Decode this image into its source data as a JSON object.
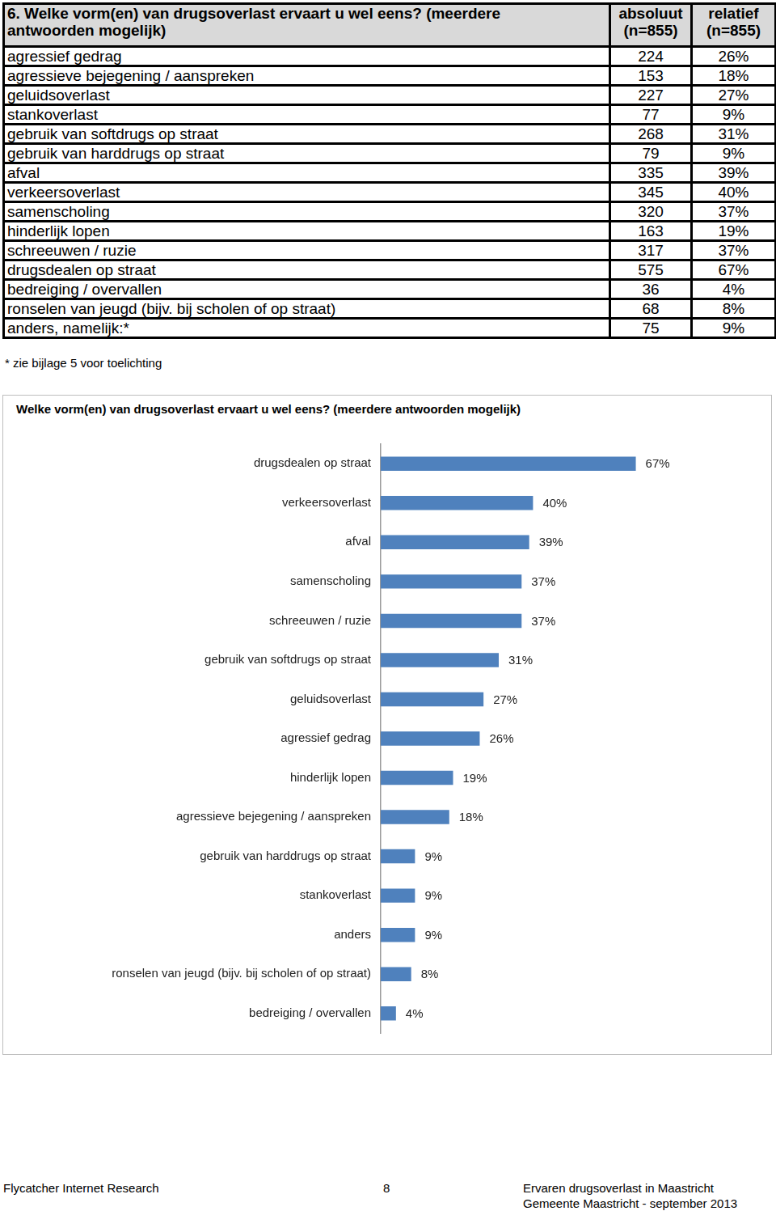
{
  "table": {
    "header": [
      [
        "6. Welke vorm(en) van drugsoverlast ervaart u wel eens? (meerdere",
        "antwoorden mogelijk)"
      ],
      [
        "absoluut",
        "(n=855)"
      ],
      [
        "relatief",
        "(n=855)"
      ]
    ],
    "rows": [
      [
        "agressief gedrag",
        "224",
        "26%"
      ],
      [
        "agressieve bejegening / aanspreken",
        "153",
        "18%"
      ],
      [
        "geluidsoverlast",
        "227",
        "27%"
      ],
      [
        "stankoverlast",
        "77",
        "9%"
      ],
      [
        "gebruik van softdrugs op straat",
        "268",
        "31%"
      ],
      [
        "gebruik van harddrugs op straat",
        "79",
        "9%"
      ],
      [
        "afval",
        "335",
        "39%"
      ],
      [
        "verkeersoverlast",
        "345",
        "40%"
      ],
      [
        "samenscholing",
        "320",
        "37%"
      ],
      [
        "hinderlijk lopen",
        "163",
        "19%"
      ],
      [
        "schreeuwen / ruzie",
        "317",
        "37%"
      ],
      [
        "drugsdealen op straat",
        "575",
        "67%"
      ],
      [
        "bedreiging / overvallen",
        "36",
        "4%"
      ],
      [
        "ronselen van jeugd (bijv. bij scholen of op straat)",
        "68",
        "8%"
      ],
      [
        "anders, namelijk:*",
        "75",
        "9%"
      ]
    ]
  },
  "footnote": "* zie bijlage 5 voor toelichting",
  "chart_data": {
    "type": "bar",
    "orientation": "horizontal",
    "title": "Welke vorm(en) van drugsoverlast ervaart u wel eens? (meerdere antwoorden mogelijk)",
    "categories": [
      "drugsdealen op straat",
      "verkeersoverlast",
      "afval",
      "samenscholing",
      "schreeuwen / ruzie",
      "gebruik van softdrugs op straat",
      "geluidsoverlast",
      "agressief gedrag",
      "hinderlijk lopen",
      "agressieve bejegening / aanspreken",
      "gebruik van harddrugs op straat",
      "stankoverlast",
      "anders",
      "ronselen van jeugd (bijv. bij scholen of op straat)",
      "bedreiging / overvallen"
    ],
    "values": [
      67,
      40,
      39,
      37,
      37,
      31,
      27,
      26,
      19,
      18,
      9,
      9,
      9,
      8,
      4
    ],
    "value_labels": [
      "67%",
      "40%",
      "39%",
      "37%",
      "37%",
      "31%",
      "27%",
      "26%",
      "19%",
      "18%",
      "9%",
      "9%",
      "9%",
      "8%",
      "4%"
    ],
    "color": "#4f81bd",
    "xlim": [
      0,
      100
    ],
    "grid": false,
    "data_labels": true,
    "tick_labels": "y"
  },
  "footer": {
    "left": "Flycatcher Internet Research",
    "page": "8",
    "right": [
      "Ervaren drugsoverlast in Maastricht",
      "Gemeente Maastricht - september 2013"
    ]
  }
}
